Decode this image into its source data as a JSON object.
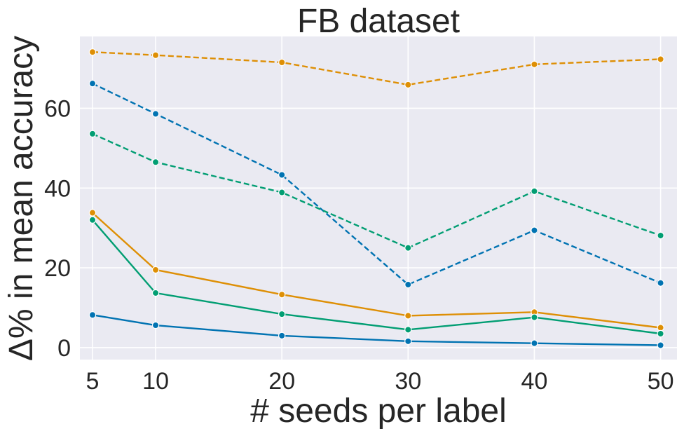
{
  "chart_data": {
    "type": "line",
    "title": "FB dataset",
    "xlabel": "# seeds per label",
    "ylabel": "Δ% in mean accuracy",
    "x": [
      5,
      10,
      20,
      30,
      40,
      50
    ],
    "xlim": [
      4,
      51.3
    ],
    "ylim": [
      -3,
      78
    ],
    "xticks": [
      "5",
      "10",
      "20",
      "30",
      "40",
      "50"
    ],
    "yticks": [
      0,
      20,
      40,
      60
    ],
    "grid": true,
    "background": "#eaeaf2",
    "series": [
      {
        "name": "blue-dashed",
        "color": "#0173b2",
        "dashed": true,
        "values": [
          66.2,
          58.6,
          43.3,
          15.8,
          29.4,
          16.2
        ]
      },
      {
        "name": "orange-dashed",
        "color": "#de8f05",
        "dashed": true,
        "values": [
          74.1,
          73.3,
          71.5,
          65.9,
          71.0,
          72.3
        ]
      },
      {
        "name": "green-dashed",
        "color": "#029e73",
        "dashed": true,
        "values": [
          53.6,
          46.5,
          38.9,
          25.0,
          39.2,
          28.1
        ]
      },
      {
        "name": "blue-solid",
        "color": "#0173b2",
        "dashed": false,
        "values": [
          8.2,
          5.6,
          3.0,
          1.6,
          1.1,
          0.6
        ]
      },
      {
        "name": "orange-solid",
        "color": "#de8f05",
        "dashed": false,
        "values": [
          33.8,
          19.5,
          13.3,
          8.0,
          8.9,
          5.0
        ]
      },
      {
        "name": "green-solid",
        "color": "#029e73",
        "dashed": false,
        "values": [
          32.0,
          13.7,
          8.4,
          4.5,
          7.6,
          3.5
        ]
      }
    ]
  }
}
